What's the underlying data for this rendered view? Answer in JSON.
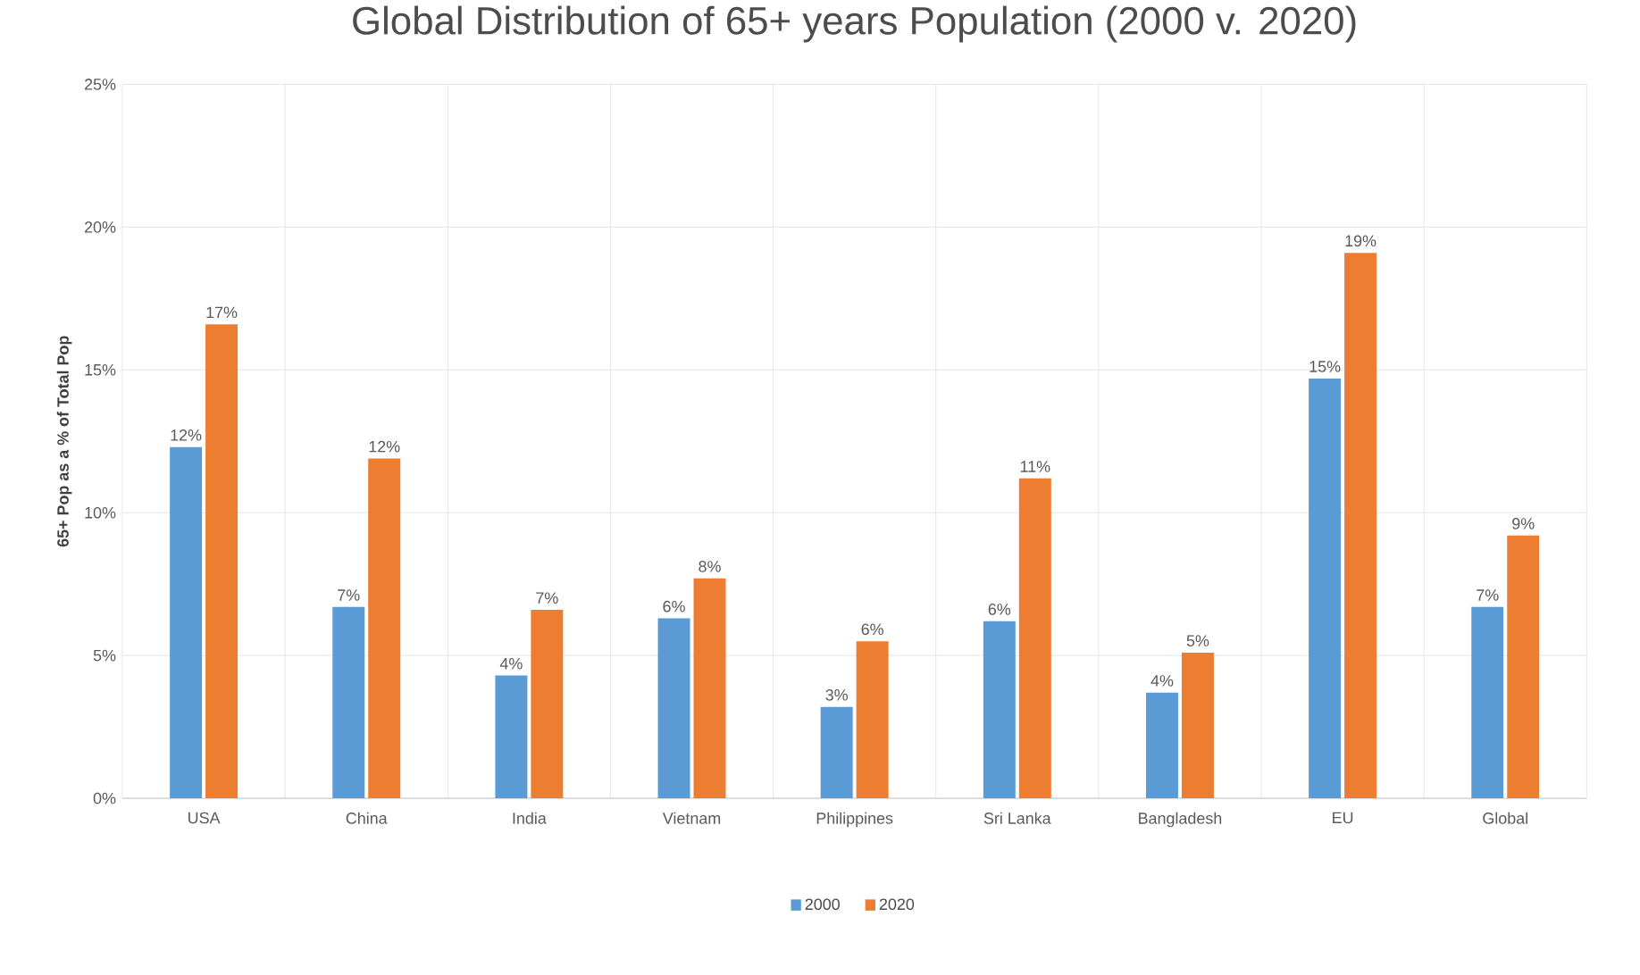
{
  "chart_data": {
    "type": "bar",
    "title": "Global Distribution of 65+ years Population (2000 v. 2020)",
    "ylabel": "65+ Pop as a % of Total Pop",
    "categories": [
      "USA",
      "China",
      "India",
      "Vietnam",
      "Philippines",
      "Sri Lanka",
      "Bangladesh",
      "EU",
      "Global"
    ],
    "series": [
      {
        "name": "2000",
        "color": "#5b9bd5",
        "values": [
          12.3,
          6.7,
          4.3,
          6.3,
          3.2,
          6.2,
          3.7,
          14.7,
          6.7
        ],
        "value_labels": [
          "12%",
          "7%",
          "4%",
          "6%",
          "3%",
          "6%",
          "4%",
          "15%",
          "7%"
        ]
      },
      {
        "name": "2020",
        "color": "#ed7d31",
        "values": [
          16.6,
          11.9,
          6.6,
          7.7,
          5.5,
          11.2,
          5.1,
          19.1,
          9.2
        ],
        "value_labels": [
          "17%",
          "12%",
          "7%",
          "8%",
          "6%",
          "11%",
          "5%",
          "19%",
          "9%"
        ]
      }
    ],
    "ylim": [
      0,
      25
    ],
    "yticks": [
      {
        "value": 0,
        "label": "0%"
      },
      {
        "value": 5,
        "label": "5%"
      },
      {
        "value": 10,
        "label": "10%"
      },
      {
        "value": 15,
        "label": "15%"
      },
      {
        "value": 20,
        "label": "20%"
      },
      {
        "value": 25,
        "label": "25%"
      }
    ],
    "grid": true,
    "legend": "bottom"
  }
}
